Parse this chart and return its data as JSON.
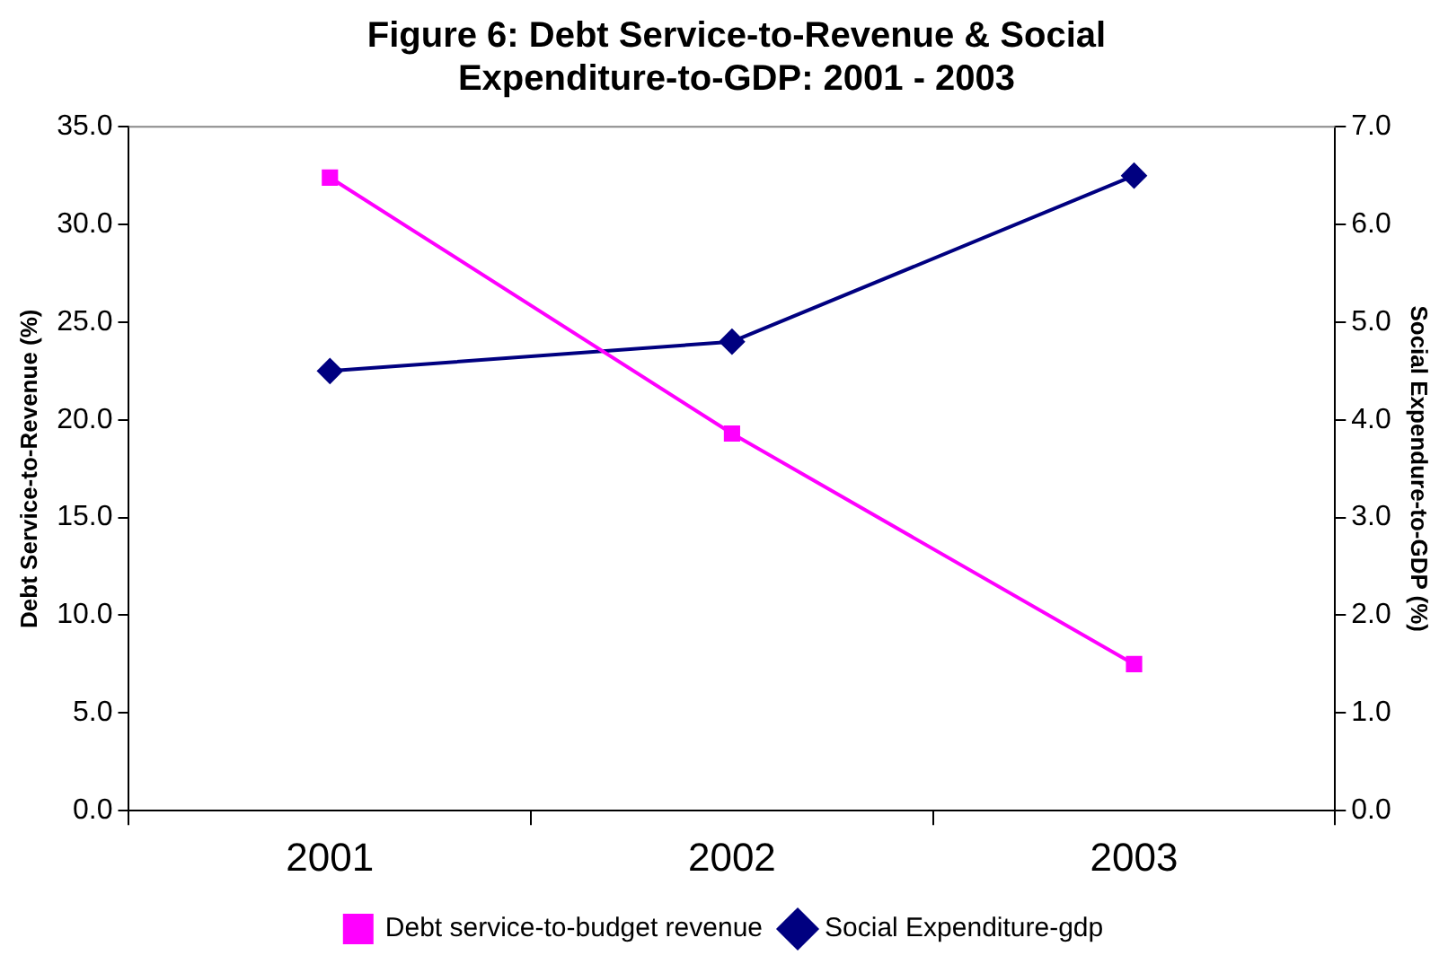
{
  "chart_data": {
    "type": "line",
    "title": "Figure 6: Debt Service-to-Revenue & Social Expenditure-to-GDP: 2001 - 2003",
    "ylabel": "Debt Service-to-Revenue (%)",
    "y2label": "Social Expendure-to-GDP (%)",
    "categories": [
      "2001",
      "2002",
      "2003"
    ],
    "series": [
      {
        "name": "Debt service-to-budget revenue",
        "color": "#ff00ff",
        "marker": "square",
        "values": [
          32.4,
          19.3,
          7.5
        ]
      },
      {
        "name": "Social Expenditure-gdp",
        "color": "#000080",
        "marker": "diamond",
        "axis": "y2",
        "values": [
          4.5,
          4.8,
          6.5
        ]
      }
    ],
    "ylim": [
      0,
      35
    ],
    "yticks": [
      {
        "value": 0,
        "label": "0.0"
      },
      {
        "value": 5,
        "label": "5.0"
      },
      {
        "value": 10,
        "label": "10.0"
      },
      {
        "value": 15,
        "label": "15.0"
      },
      {
        "value": 20,
        "label": "20.0"
      },
      {
        "value": 25,
        "label": "25.0"
      },
      {
        "value": 30,
        "label": "30.0"
      },
      {
        "value": 35,
        "label": "35.0"
      }
    ],
    "y2lim": [
      0,
      7
    ],
    "y2ticks": [
      {
        "value": 0,
        "label": "0.0"
      },
      {
        "value": 1,
        "label": "1.0"
      },
      {
        "value": 2,
        "label": "2.0"
      },
      {
        "value": 3,
        "label": "3.0"
      },
      {
        "value": 4,
        "label": "4.0"
      },
      {
        "value": 5,
        "label": "5.0"
      },
      {
        "value": 6,
        "label": "6.0"
      },
      {
        "value": 7,
        "label": "7.0"
      }
    ],
    "grid": false,
    "legend": "bottom",
    "line_style": "solid"
  }
}
